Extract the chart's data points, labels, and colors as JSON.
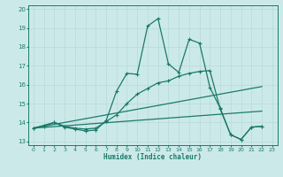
{
  "xlabel": "Humidex (Indice chaleur)",
  "xlim": [
    -0.5,
    23.5
  ],
  "ylim": [
    12.8,
    20.2
  ],
  "xticks": [
    0,
    1,
    2,
    3,
    4,
    5,
    6,
    7,
    8,
    9,
    10,
    11,
    12,
    13,
    14,
    15,
    16,
    17,
    18,
    19,
    20,
    21,
    22,
    23
  ],
  "yticks": [
    13,
    14,
    15,
    16,
    17,
    18,
    19,
    20
  ],
  "bg_color": "#cce9e9",
  "line_color": "#1a7a6a",
  "grid_color": "#b8d8d8",
  "lines": [
    {
      "x": [
        0,
        1,
        2,
        3,
        4,
        5,
        6,
        7,
        8,
        9,
        10,
        11,
        12,
        13,
        14,
        15,
        16,
        17,
        18,
        19,
        20,
        21,
        22
      ],
      "y": [
        13.7,
        13.85,
        14.0,
        13.75,
        13.65,
        13.55,
        13.6,
        14.1,
        15.65,
        16.6,
        16.55,
        19.1,
        19.5,
        17.1,
        16.65,
        18.4,
        18.2,
        15.85,
        14.75,
        13.35,
        13.1,
        13.75,
        13.8
      ],
      "marker": "+",
      "marker_size": 3.0,
      "lw": 0.9
    },
    {
      "x": [
        0,
        1,
        2,
        3,
        4,
        5,
        6,
        7,
        8,
        9,
        10,
        11,
        12,
        13,
        14,
        15,
        16,
        17,
        18,
        19,
        20,
        21,
        22
      ],
      "y": [
        13.7,
        13.8,
        14.0,
        13.8,
        13.7,
        13.65,
        13.7,
        14.05,
        14.4,
        15.0,
        15.5,
        15.8,
        16.1,
        16.2,
        16.45,
        16.6,
        16.7,
        16.75,
        14.7,
        13.35,
        13.1,
        13.75,
        13.8
      ],
      "marker": "+",
      "marker_size": 3.0,
      "lw": 0.9
    },
    {
      "x": [
        0,
        22
      ],
      "y": [
        13.7,
        15.9
      ],
      "marker": null,
      "marker_size": 0,
      "lw": 0.9
    },
    {
      "x": [
        0,
        22
      ],
      "y": [
        13.7,
        14.6
      ],
      "marker": null,
      "marker_size": 0,
      "lw": 0.9
    }
  ]
}
